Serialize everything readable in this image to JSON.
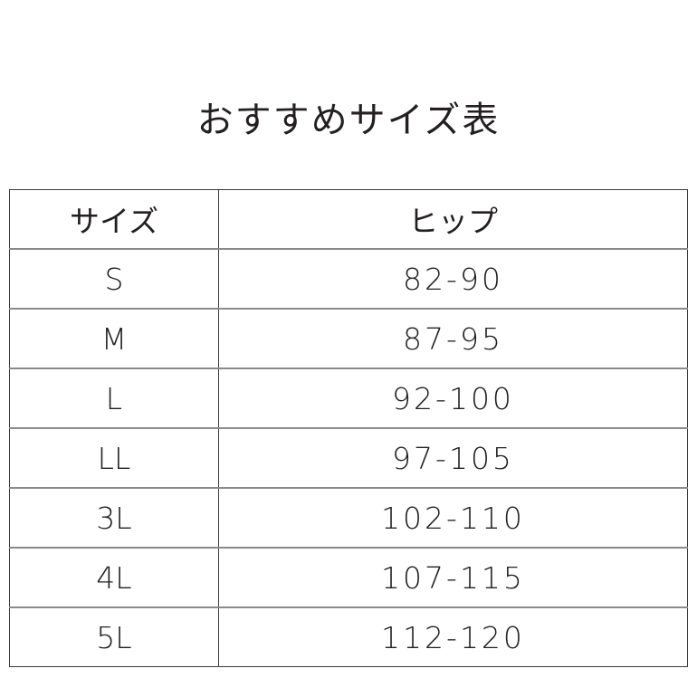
{
  "title": "おすすめサイズ表",
  "table": {
    "headers": [
      "サイズ",
      "ヒップ"
    ],
    "rows": [
      {
        "size": "S",
        "hip": "82-90"
      },
      {
        "size": "M",
        "hip": "87-95"
      },
      {
        "size": "L",
        "hip": "92-100"
      },
      {
        "size": "LL",
        "hip": "97-105"
      },
      {
        "size": "3L",
        "hip": "102-110"
      },
      {
        "size": "4L",
        "hip": "107-115"
      },
      {
        "size": "5L",
        "hip": "112-120"
      }
    ]
  }
}
